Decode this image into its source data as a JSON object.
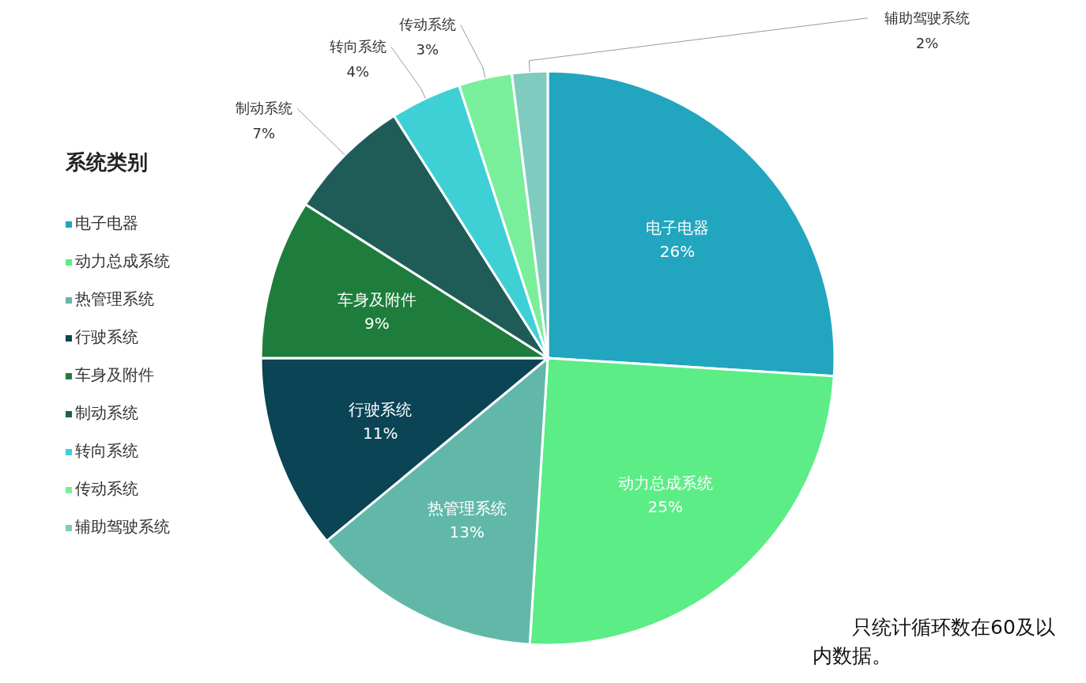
{
  "chart_data": {
    "type": "pie",
    "legend_title": "系统类别",
    "legend": "left",
    "categories": [
      "电子电器",
      "动力总成系统",
      "热管理系统",
      "行驶系统",
      "车身及附件",
      "制动系统",
      "转向系统",
      "传动系统",
      "辅助驾驶系统"
    ],
    "values": [
      26,
      25,
      13,
      11,
      9,
      7,
      4,
      3,
      2
    ],
    "value_labels": [
      "26%",
      "25%",
      "13%",
      "11%",
      "9%",
      "7%",
      "4%",
      "3%",
      "2%"
    ],
    "colors": [
      "#22a6bf",
      "#5ced86",
      "#62b8a8",
      "#0a4455",
      "#1e7d3c",
      "#1f5c58",
      "#3fd0d6",
      "#7aef9b",
      "#7fcbbf"
    ],
    "annotations": [
      "只统计循环数在60及以内数据。"
    ]
  }
}
